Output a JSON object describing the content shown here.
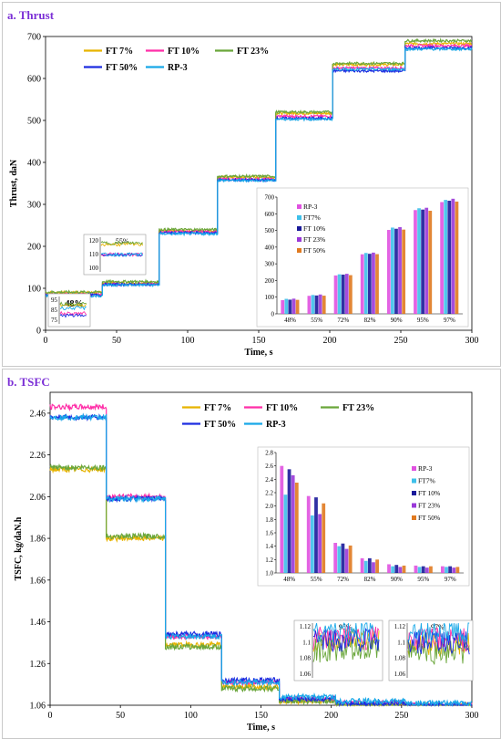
{
  "figure": {
    "colors": {
      "FT 7%": "#e8b400",
      "FT 10%": "#ff2fa8",
      "FT 23%": "#6aa63a",
      "FT 50%": "#1c2ce0",
      "RP-3": "#18a8e8"
    },
    "bar_colors": {
      "RP-3": "#e052e0",
      "FT7%": "#3ec0ea",
      "FT 10%": "#1a1a9a",
      "FT 23%": "#9a38d8",
      "FT 50%": "#e07a20"
    }
  },
  "chart_data": [
    {
      "id": "thrust",
      "type": "line",
      "title": "a.  Thrust",
      "xlabel": "Time, s",
      "ylabel": "Thrust, daN",
      "xlim": [
        0,
        300
      ],
      "ylim": [
        0,
        700
      ],
      "xticks": [
        0,
        50,
        100,
        150,
        200,
        250,
        300
      ],
      "yticks": [
        0,
        100,
        200,
        300,
        400,
        500,
        600,
        700
      ],
      "legend": "top-left",
      "segment_bounds": [
        0,
        40,
        80,
        121,
        162,
        202,
        253,
        300
      ],
      "series": [
        {
          "name": "FT 7%",
          "values": [
            90,
            113,
            237,
            365,
            517,
            633,
            683
          ]
        },
        {
          "name": "FT 10%",
          "values": [
            85,
            110,
            235,
            360,
            510,
            625,
            678
          ]
        },
        {
          "name": "FT 23%",
          "values": [
            91,
            116,
            240,
            367,
            520,
            636,
            690
          ]
        },
        {
          "name": "FT 50%",
          "values": [
            84,
            109,
            232,
            358,
            505,
            618,
            673
          ]
        },
        {
          "name": "RP-3",
          "values": [
            82,
            108,
            230,
            357,
            503,
            622,
            670
          ]
        }
      ],
      "insets": [
        {
          "id": "thrust-inset-48",
          "label": "48%",
          "ytick_labels": [
            "95",
            "85",
            "75"
          ],
          "ylim": [
            72,
            98
          ],
          "series_levels": {
            "FT 7%": 90,
            "FT 10%": 82,
            "FT 23%": 91,
            "FT 50%": 80,
            "RP-3": 87
          }
        },
        {
          "id": "thrust-inset-55",
          "label": "55%",
          "ytick_labels": [
            "120",
            "110",
            "100"
          ],
          "ylim": [
            98,
            122
          ],
          "series_levels": {
            "FT 7%": 117,
            "FT 10%": 110,
            "FT 23%": 118,
            "FT 50%": 110,
            "RP-3": 110
          }
        }
      ],
      "bar_inset": {
        "type": "bar",
        "categories": [
          "48%",
          "55%",
          "72%",
          "82%",
          "90%",
          "95%",
          "97%"
        ],
        "yticks": [
          0,
          100,
          200,
          300,
          400,
          500,
          600,
          700
        ],
        "ylim": [
          0,
          700
        ],
        "legend": "top-left",
        "series": [
          {
            "name": "RP-3",
            "values": [
              82,
              108,
              230,
              357,
              503,
              622,
              670
            ]
          },
          {
            "name": "FT7%",
            "values": [
              90,
              113,
              237,
              365,
              517,
              633,
              683
            ]
          },
          {
            "name": "FT 10%",
            "values": [
              85,
              110,
              235,
              360,
              510,
              625,
              678
            ]
          },
          {
            "name": "FT 23%",
            "values": [
              91,
              116,
              240,
              367,
              520,
              636,
              690
            ]
          },
          {
            "name": "FT 50%",
            "values": [
              84,
              109,
              232,
              358,
              505,
              618,
              673
            ]
          }
        ]
      }
    },
    {
      "id": "tsfc",
      "type": "line",
      "title": "b. TSFC",
      "xlabel": "Time, s",
      "ylabel": "TSFC, kg/daN.h",
      "xlim": [
        0,
        300
      ],
      "ylim": [
        1.06,
        2.56
      ],
      "xticks": [
        0,
        50,
        100,
        150,
        200,
        250,
        300
      ],
      "yticks": [
        1.06,
        1.26,
        1.46,
        1.66,
        1.86,
        2.06,
        2.26,
        2.46
      ],
      "legend": "top-center",
      "segment_bounds": [
        0,
        40,
        82,
        122,
        163,
        203,
        253,
        300
      ],
      "series": [
        {
          "name": "FT 7%",
          "values": [
            2.19,
            1.86,
            1.35,
            1.15,
            1.08,
            1.06,
            1.06
          ]
        },
        {
          "name": "FT 10%",
          "values": [
            2.49,
            2.06,
            1.39,
            1.17,
            1.09,
            1.07,
            1.06
          ]
        },
        {
          "name": "FT 23%",
          "values": [
            2.2,
            1.87,
            1.34,
            1.14,
            1.08,
            1.06,
            1.05
          ]
        },
        {
          "name": "FT 50%",
          "values": [
            2.44,
            2.05,
            1.4,
            1.18,
            1.09,
            1.07,
            1.06
          ]
        },
        {
          "name": "RP-3",
          "values": [
            2.44,
            2.05,
            1.39,
            1.17,
            1.1,
            1.08,
            1.07
          ]
        }
      ],
      "insets": [
        {
          "id": "tsfc-inset-95",
          "label": "95%",
          "ytick_labels": [
            "1.12",
            "1.1",
            "1.08",
            "1.06"
          ],
          "ylim": [
            1.06,
            1.12
          ],
          "series_levels": {
            "FT 7%": 1.1,
            "FT 10%": 1.104,
            "FT 23%": 1.09,
            "FT 50%": 1.102,
            "RP-3": 1.112
          }
        },
        {
          "id": "tsfc-inset-97",
          "label": "97%",
          "ytick_labels": [
            "1.12",
            "1.1",
            "1.08",
            "1.06"
          ],
          "ylim": [
            1.06,
            1.12
          ],
          "series_levels": {
            "FT 7%": 1.096,
            "FT 10%": 1.102,
            "FT 23%": 1.088,
            "FT 50%": 1.098,
            "RP-3": 1.11
          }
        }
      ],
      "bar_inset": {
        "type": "bar",
        "categories": [
          "48%",
          "55%",
          "72%",
          "82%",
          "90%",
          "95%",
          "97%"
        ],
        "yticks": [
          1.0,
          1.2,
          1.4,
          1.6,
          1.8,
          2.0,
          2.2,
          2.4,
          2.6,
          2.8
        ],
        "ytick_labels": [
          "1.0",
          "1.2",
          "1.4",
          "1.6",
          "1.8",
          "2.0",
          "2.2",
          "2.4",
          "2.6",
          "2.8"
        ],
        "ylim": [
          1.0,
          2.8
        ],
        "legend": "right",
        "series": [
          {
            "name": "RP-3",
            "values": [
              2.6,
              2.15,
              1.45,
              1.22,
              1.13,
              1.11,
              1.1
            ]
          },
          {
            "name": "FT7%",
            "values": [
              2.17,
              1.86,
              1.4,
              1.18,
              1.1,
              1.09,
              1.09
            ]
          },
          {
            "name": "FT 10%",
            "values": [
              2.55,
              2.13,
              1.44,
              1.22,
              1.12,
              1.1,
              1.1
            ]
          },
          {
            "name": "FT 23%",
            "values": [
              2.46,
              1.88,
              1.36,
              1.16,
              1.09,
              1.08,
              1.08
            ]
          },
          {
            "name": "FT 50%",
            "values": [
              2.35,
              2.04,
              1.41,
              1.2,
              1.11,
              1.1,
              1.09
            ]
          }
        ]
      }
    }
  ]
}
